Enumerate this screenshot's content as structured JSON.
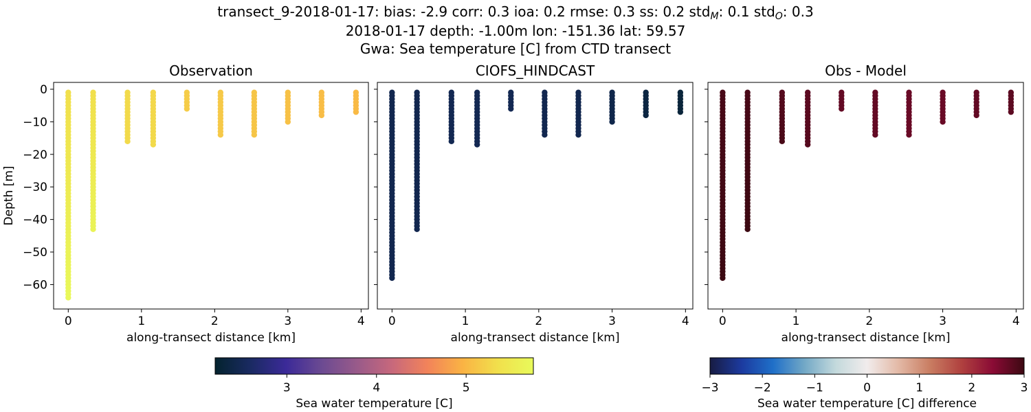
{
  "figure": {
    "title_line1": "transect_9-2018-01-17: bias: -2.9  corr: 0.3  ioa: 0.2  rmse: 0.3  ss: 0.2  std",
    "title_std_m_sub": "M",
    "title_std_m_value": ": 0.1  std",
    "title_std_o_sub": "O",
    "title_std_o_value": ": 0.3",
    "title_line2": "2018-01-17 depth: -1.00m lon: -151.36 lat: 59.57",
    "title_line3": "Gwa: Sea temperature [C] from CTD transect"
  },
  "chart_data": [
    {
      "type": "scatter",
      "title": "Observation",
      "xlabel": "along-transect distance [km]",
      "ylabel": "Depth [m]",
      "xlim": [
        -0.2,
        4.1
      ],
      "ylim": [
        -67.5,
        2.1
      ],
      "xticks": [
        0,
        1,
        2,
        3,
        4
      ],
      "yticks": [
        0,
        -10,
        -20,
        -30,
        -40,
        -50,
        -60
      ],
      "colormap": "thermal",
      "clim": [
        2.2,
        5.75
      ],
      "stations": [
        {
          "x": 0.0,
          "depth_min": -1,
          "depth_max": -64,
          "value_top": 5.35,
          "value_bottom": 5.72
        },
        {
          "x": 0.34,
          "depth_min": -1,
          "depth_max": -43,
          "value_top": 5.35,
          "value_bottom": 5.65
        },
        {
          "x": 0.81,
          "depth_min": -1,
          "depth_max": -16,
          "value_top": 5.3,
          "value_bottom": 5.3
        },
        {
          "x": 1.16,
          "depth_min": -1,
          "depth_max": -17,
          "value_top": 5.28,
          "value_bottom": 5.3
        },
        {
          "x": 1.62,
          "depth_min": -1,
          "depth_max": -6,
          "value_top": 5.18,
          "value_bottom": 5.18
        },
        {
          "x": 2.08,
          "depth_min": -1,
          "depth_max": -14,
          "value_top": 5.15,
          "value_bottom": 5.15
        },
        {
          "x": 2.54,
          "depth_min": -1,
          "depth_max": -14,
          "value_top": 5.12,
          "value_bottom": 5.12
        },
        {
          "x": 3.0,
          "depth_min": -1,
          "depth_max": -10,
          "value_top": 5.08,
          "value_bottom": 5.08
        },
        {
          "x": 3.46,
          "depth_min": -1,
          "depth_max": -8,
          "value_top": 5.05,
          "value_bottom": 5.05
        },
        {
          "x": 3.93,
          "depth_min": -1,
          "depth_max": -7,
          "value_top": 5.02,
          "value_bottom": 5.02
        }
      ]
    },
    {
      "type": "scatter",
      "title": "CIOFS_HINDCAST",
      "xlabel": "along-transect distance [km]",
      "ylabel": "",
      "xlim": [
        -0.2,
        4.1
      ],
      "ylim": [
        -67.5,
        2.1
      ],
      "xticks": [
        0,
        1,
        2,
        3,
        4
      ],
      "yticks": [
        0,
        -10,
        -20,
        -30,
        -40,
        -50,
        -60
      ],
      "colormap": "thermal",
      "clim": [
        2.2,
        5.75
      ],
      "stations": [
        {
          "x": 0.0,
          "depth_min": -1,
          "depth_max": -58,
          "value_top": 2.45,
          "value_bottom": 2.45
        },
        {
          "x": 0.34,
          "depth_min": -1,
          "depth_max": -43,
          "value_top": 2.45,
          "value_bottom": 2.45
        },
        {
          "x": 0.81,
          "depth_min": -1,
          "depth_max": -16,
          "value_top": 2.47,
          "value_bottom": 2.47
        },
        {
          "x": 1.16,
          "depth_min": -1,
          "depth_max": -17,
          "value_top": 2.47,
          "value_bottom": 2.47
        },
        {
          "x": 1.62,
          "depth_min": -1,
          "depth_max": -6,
          "value_top": 2.47,
          "value_bottom": 2.47
        },
        {
          "x": 2.08,
          "depth_min": -1,
          "depth_max": -14,
          "value_top": 2.45,
          "value_bottom": 2.45
        },
        {
          "x": 2.54,
          "depth_min": -1,
          "depth_max": -14,
          "value_top": 2.45,
          "value_bottom": 2.45
        },
        {
          "x": 3.0,
          "depth_min": -1,
          "depth_max": -10,
          "value_top": 2.42,
          "value_bottom": 2.42
        },
        {
          "x": 3.46,
          "depth_min": -1,
          "depth_max": -8,
          "value_top": 2.35,
          "value_bottom": 2.35
        },
        {
          "x": 3.93,
          "depth_min": -1,
          "depth_max": -7,
          "value_top": 2.3,
          "value_bottom": 2.3
        }
      ]
    },
    {
      "type": "scatter",
      "title": "Obs - Model",
      "xlabel": "along-transect distance [km]",
      "ylabel": "",
      "xlim": [
        -0.2,
        4.1
      ],
      "ylim": [
        -67.5,
        2.1
      ],
      "xticks": [
        0,
        1,
        2,
        3,
        4
      ],
      "yticks": [
        0,
        -10,
        -20,
        -30,
        -40,
        -50,
        -60
      ],
      "colormap": "balance",
      "clim": [
        -3,
        3
      ],
      "stations": [
        {
          "x": 0.0,
          "depth_min": -1,
          "depth_max": -58,
          "value_top": 2.9,
          "value_bottom": 3.0
        },
        {
          "x": 0.34,
          "depth_min": -1,
          "depth_max": -43,
          "value_top": 2.9,
          "value_bottom": 3.0
        },
        {
          "x": 0.81,
          "depth_min": -1,
          "depth_max": -16,
          "value_top": 2.8,
          "value_bottom": 2.9
        },
        {
          "x": 1.16,
          "depth_min": -1,
          "depth_max": -17,
          "value_top": 2.75,
          "value_bottom": 2.8
        },
        {
          "x": 1.62,
          "depth_min": -1,
          "depth_max": -6,
          "value_top": 2.7,
          "value_bottom": 2.7
        },
        {
          "x": 2.08,
          "depth_min": -1,
          "depth_max": -14,
          "value_top": 2.7,
          "value_bottom": 2.7
        },
        {
          "x": 2.54,
          "depth_min": -1,
          "depth_max": -14,
          "value_top": 2.65,
          "value_bottom": 2.65
        },
        {
          "x": 3.0,
          "depth_min": -1,
          "depth_max": -10,
          "value_top": 2.65,
          "value_bottom": 2.65
        },
        {
          "x": 3.46,
          "depth_min": -1,
          "depth_max": -8,
          "value_top": 2.7,
          "value_bottom": 2.7
        },
        {
          "x": 3.93,
          "depth_min": -1,
          "depth_max": -7,
          "value_top": 2.75,
          "value_bottom": 2.75
        }
      ]
    }
  ],
  "colorbars": [
    {
      "label": "Sea water temperature [C]",
      "colormap": "thermal",
      "clim": [
        2.2,
        5.75
      ],
      "ticks": [
        {
          "value": 3,
          "label": "3"
        },
        {
          "value": 4,
          "label": "4"
        },
        {
          "value": 5,
          "label": "5"
        }
      ]
    },
    {
      "label": "Sea water temperature [C] difference",
      "colormap": "balance",
      "clim": [
        -3,
        3
      ],
      "ticks": [
        {
          "value": -3,
          "label": "−3"
        },
        {
          "value": -2,
          "label": "−2"
        },
        {
          "value": -1,
          "label": "−1"
        },
        {
          "value": 0,
          "label": "0"
        },
        {
          "value": 1,
          "label": "1"
        },
        {
          "value": 2,
          "label": "2"
        },
        {
          "value": 3,
          "label": "3"
        }
      ]
    }
  ],
  "colormaps": {
    "thermal": [
      "#04232e",
      "#1a2a62",
      "#3b2a98",
      "#6b4a92",
      "#985a8a",
      "#c7687c",
      "#f2835a",
      "#fab344",
      "#f1e04c",
      "#e8fa5b"
    ],
    "balance": [
      "#181c43",
      "#1c3a9f",
      "#1f6fc8",
      "#72a8c6",
      "#c3d9dc",
      "#f1ecec",
      "#e3b9a6",
      "#c97d62",
      "#b0413f",
      "#8a0b35",
      "#3c0912"
    ]
  }
}
